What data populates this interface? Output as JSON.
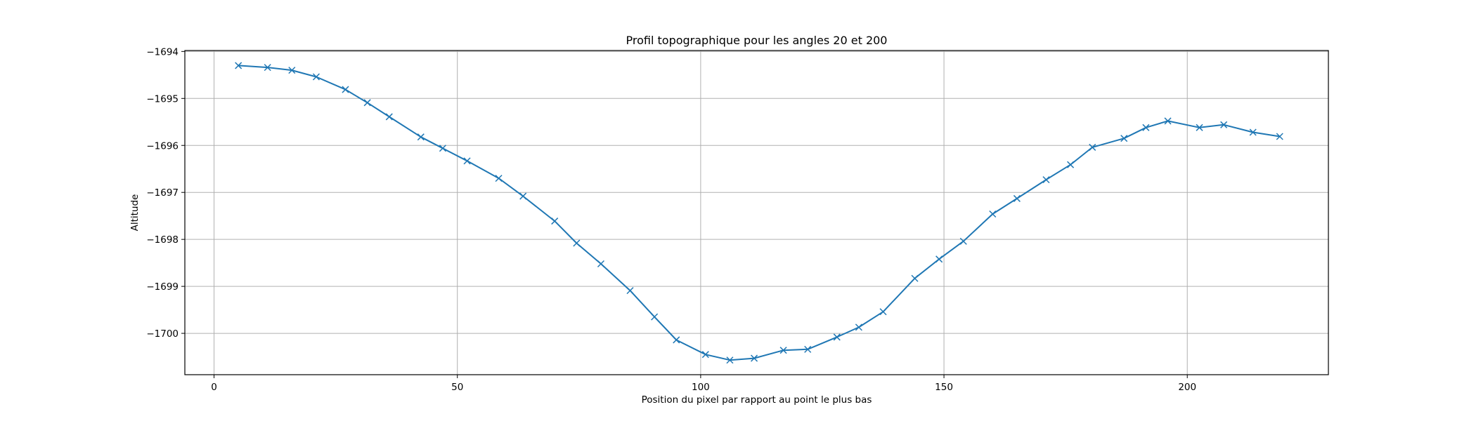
{
  "chart_data": {
    "type": "line",
    "title": "Profil topographique pour les angles 20 et 200",
    "xlabel": "Position du pixel par rapport au point le plus bas",
    "ylabel": "Altitude",
    "xlim": [
      -6,
      229
    ],
    "ylim": [
      -1700.88,
      -1693.98
    ],
    "xticks": [
      0,
      50,
      100,
      150,
      200
    ],
    "xtick_labels": [
      "0",
      "50",
      "100",
      "150",
      "200"
    ],
    "yticks": [
      -1700,
      -1699,
      -1698,
      -1697,
      -1696,
      -1695,
      -1694
    ],
    "ytick_labels": [
      "−1700",
      "−1699",
      "−1698",
      "−1697",
      "−1696",
      "−1695",
      "−1694"
    ],
    "grid": true,
    "marker": "x",
    "series": [
      {
        "color": "#1f77b4",
        "x": [
          5,
          11,
          16,
          21,
          27,
          31.5,
          36,
          42.5,
          47,
          52,
          58.5,
          63.5,
          70,
          74.5,
          79.5,
          85.5,
          90.5,
          95,
          101,
          106,
          111,
          117,
          122,
          128,
          132.5,
          137.5,
          144,
          149,
          154,
          160,
          165,
          171,
          176,
          180.5,
          187,
          191.5,
          196,
          202.5,
          207.5,
          213.5,
          219
        ],
        "y": [
          -1694.3,
          -1694.34,
          -1694.4,
          -1694.54,
          -1694.81,
          -1695.09,
          -1695.39,
          -1695.82,
          -1696.06,
          -1696.33,
          -1696.7,
          -1697.08,
          -1697.61,
          -1698.08,
          -1698.52,
          -1699.09,
          -1699.65,
          -1700.14,
          -1700.45,
          -1700.57,
          -1700.53,
          -1700.36,
          -1700.34,
          -1700.08,
          -1699.87,
          -1699.54,
          -1698.83,
          -1698.42,
          -1698.04,
          -1697.46,
          -1697.13,
          -1696.73,
          -1696.41,
          -1696.04,
          -1695.85,
          -1695.62,
          -1695.48,
          -1695.62,
          -1695.56,
          -1695.72,
          -1695.81
        ]
      }
    ]
  }
}
